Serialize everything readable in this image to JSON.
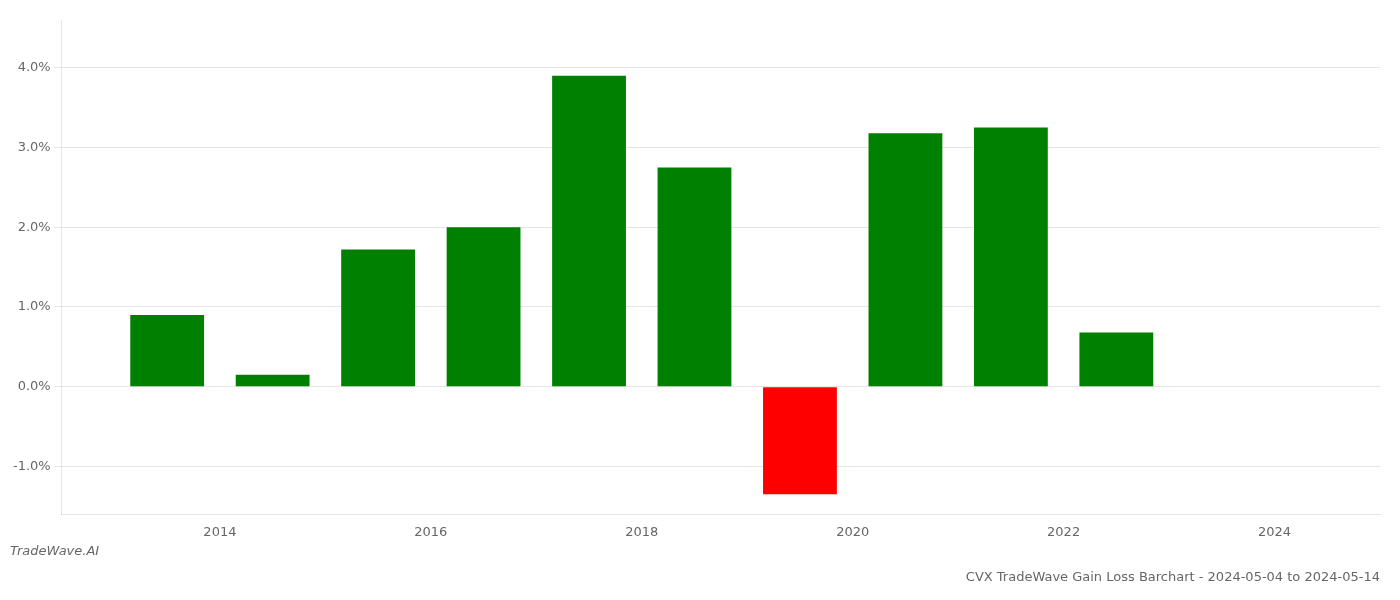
{
  "chart_data": {
    "type": "bar",
    "title": "CVX TradeWave Gain Loss Barchart - 2024-05-04 to 2024-05-14",
    "annotations": [
      "TradeWave.AI"
    ],
    "x": [
      2013.5,
      2014.5,
      2015.5,
      2016.5,
      2017.5,
      2018.5,
      2019.5,
      2020.5,
      2021.5,
      2022.5
    ],
    "values": [
      0.009,
      0.0015,
      0.0172,
      0.02,
      0.039,
      0.0275,
      -0.0135,
      0.0318,
      0.0325,
      0.0068
    ],
    "colors": [
      "#008000",
      "#008000",
      "#008000",
      "#008000",
      "#008000",
      "#008000",
      "#ff0000",
      "#008000",
      "#008000",
      "#008000"
    ],
    "xlim": [
      2012.5,
      2025.0
    ],
    "xticks": [
      2014,
      2016,
      2018,
      2020,
      2022,
      2024
    ],
    "ylim": [
      -0.016,
      0.046
    ],
    "yticks": [
      {
        "value": -0.01,
        "label": "-1.0%"
      },
      {
        "value": 0.0,
        "label": "0.0%"
      },
      {
        "value": 0.01,
        "label": "1.0%"
      },
      {
        "value": 0.02,
        "label": "2.0%"
      },
      {
        "value": 0.03,
        "label": "3.0%"
      },
      {
        "value": 0.04,
        "label": "4.0%"
      }
    ],
    "grid": true
  }
}
